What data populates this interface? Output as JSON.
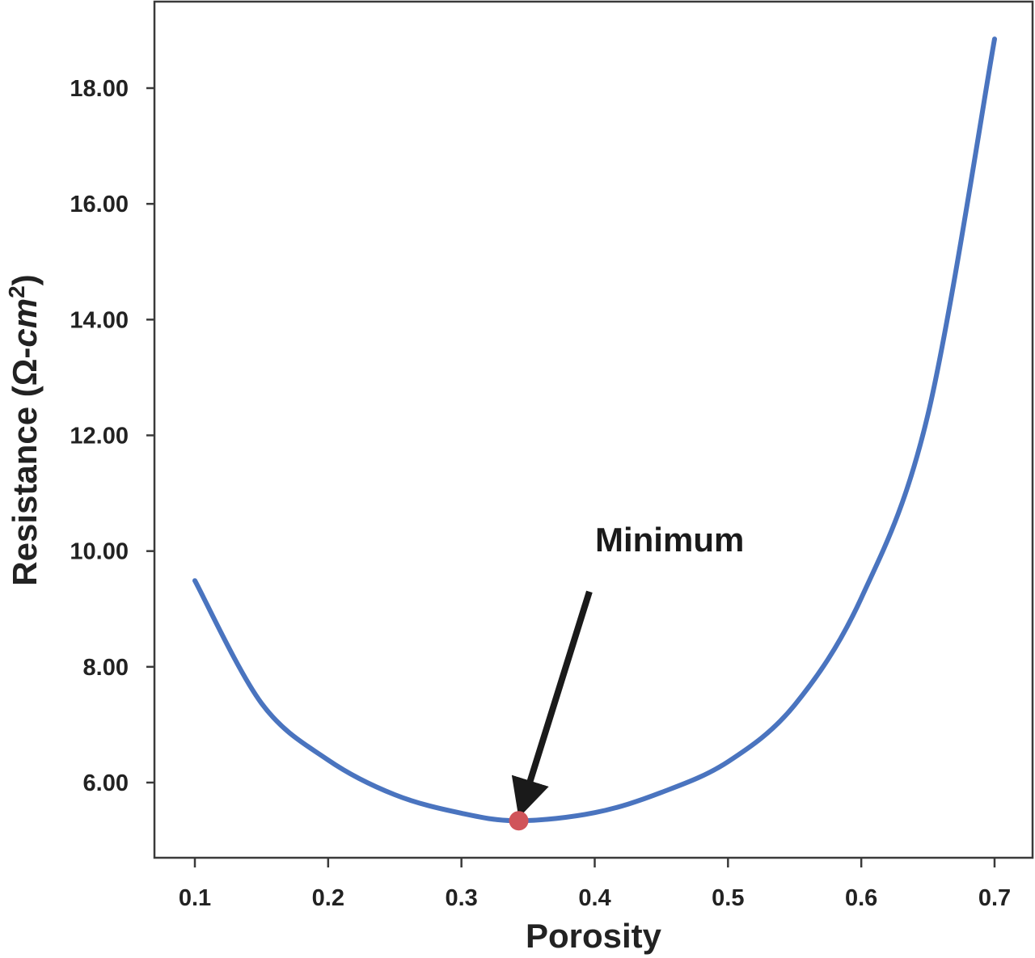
{
  "chart_data": {
    "type": "line",
    "title": "",
    "xlabel": "Porosity",
    "ylabel": "Resistance (Ω-cm²)",
    "ylabel_parts": {
      "prefix": "Resistance (Ω-",
      "unit": "cm",
      "sup": "2",
      "suffix": ")"
    },
    "xlim": [
      0.07,
      0.73
    ],
    "ylim": [
      4.7,
      19.5
    ],
    "x_ticks": [
      0.1,
      0.2,
      0.3,
      0.4,
      0.5,
      0.6,
      0.7
    ],
    "x_tick_labels": [
      "0.1",
      "0.2",
      "0.3",
      "0.4",
      "0.5",
      "0.6",
      "0.7"
    ],
    "y_ticks": [
      6,
      8,
      10,
      12,
      14,
      16,
      18
    ],
    "y_tick_labels": [
      "6.00",
      "8.00",
      "10.00",
      "12.00",
      "14.00",
      "16.00",
      "18.00"
    ],
    "grid": false,
    "legend": null,
    "series": [
      {
        "name": "Resistance",
        "color": "#4a74bf",
        "x": [
          0.1,
          0.15,
          0.2,
          0.25,
          0.3,
          0.343,
          0.4,
          0.45,
          0.5,
          0.55,
          0.6,
          0.65,
          0.7
        ],
        "y": [
          9.49,
          7.37,
          6.39,
          5.79,
          5.47,
          5.34,
          5.48,
          5.83,
          6.36,
          7.34,
          9.19,
          12.36,
          18.85
        ]
      }
    ],
    "highlight_point": {
      "x": 0.343,
      "y": 5.34,
      "color": "#d0545a",
      "label": "Minimum"
    },
    "annotations": [
      {
        "text": "Minimum",
        "x": 0.4,
        "y": 10.2,
        "arrow_from": [
          0.396,
          9.3
        ],
        "arrow_to": [
          0.347,
          5.55
        ]
      }
    ]
  }
}
